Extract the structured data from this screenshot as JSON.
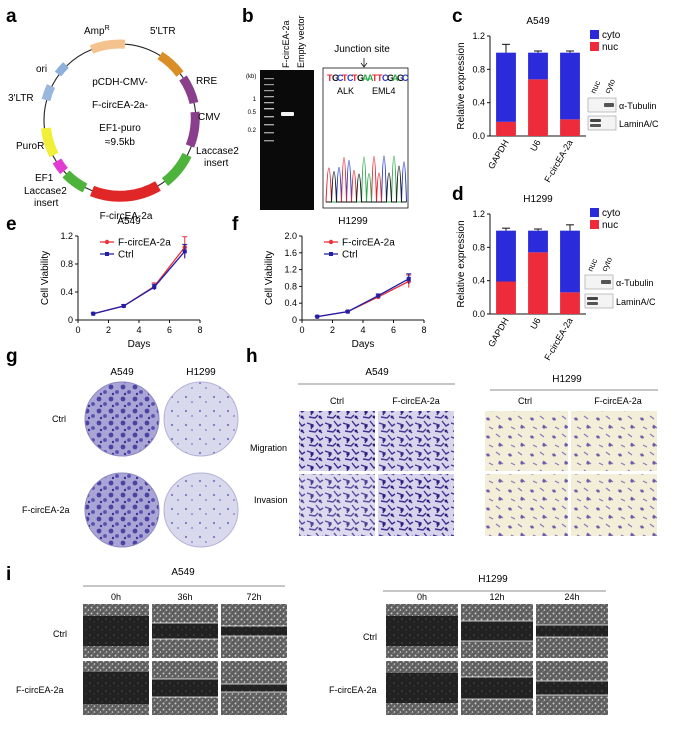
{
  "panels": {
    "a": {
      "letter": "a",
      "labels": {
        "amp": "Amp",
        "amp_sup": "R",
        "ltr5": "5'LTR",
        "ori": "ori",
        "rre": "RRE",
        "ltr3": "3'LTR",
        "cmv": "CMV",
        "laccase2_top_1": "Laccase2",
        "laccase2_top_2": "insert",
        "puror": "PuroR",
        "ef1": "EF1",
        "laccase2_bot_1": "Laccase2",
        "laccase2_bot_2": "insert",
        "fcirc": "F-circEA-2a",
        "center_1": "pCDH-CMV-",
        "center_2": "F-circEA-2a-",
        "center_3": "EF1-puro",
        "center_4": "≈9.5kb"
      }
    },
    "b": {
      "letter": "b",
      "lane_1": "F-circEA-2a",
      "lane_2": "Empty vector",
      "unit": "(kb)",
      "ticks": [
        "1",
        "0.5",
        "0.2"
      ],
      "junction_title": "Junction site",
      "sequence": [
        "T",
        "G",
        "C",
        "T",
        "C",
        "T",
        "G",
        "A",
        "A",
        "T",
        "T",
        "C",
        "G",
        "A",
        "G",
        "C"
      ],
      "gene_left": "ALK",
      "gene_right": "EML4"
    },
    "c": {
      "letter": "c",
      "cell_line": "A549",
      "blot_lanes": [
        "nuc",
        "cyto"
      ],
      "blot_labels": [
        "α-Tubulin",
        "LaminA/C"
      ]
    },
    "d": {
      "letter": "d",
      "cell_line": "H1299",
      "blot_lanes": [
        "nuc",
        "cyto"
      ],
      "blot_labels": [
        "α-Tubulin",
        "LaminA/C"
      ]
    },
    "e": {
      "letter": "e",
      "cell_line": "A549"
    },
    "f": {
      "letter": "f",
      "cell_line": "H1299"
    },
    "g": {
      "letter": "g",
      "cols": [
        "A549",
        "H1299"
      ],
      "rows": [
        "Ctrl",
        "F-circEA-2a"
      ]
    },
    "h": {
      "letter": "h",
      "groups": [
        "A549",
        "H1299"
      ],
      "cols": [
        "Ctrl",
        "F-circEA-2a"
      ],
      "rows": [
        "Migration",
        "Invasion"
      ]
    },
    "i": {
      "letter": "i",
      "groups": [
        "A549",
        "H1299"
      ],
      "times_a549": [
        "0h",
        "36h",
        "72h"
      ],
      "times_h1299": [
        "0h",
        "12h",
        "24h"
      ],
      "rows": [
        "Ctrl",
        "F-circEA-2a"
      ]
    }
  },
  "colors": {
    "cyto": "#2b2bdc",
    "nuc": "#ee2b3b",
    "ctrl_line": "#1f1fa8",
    "fcirc_line": "#e8323b"
  },
  "chart_data": [
    {
      "id": "c",
      "type": "bar",
      "stacked": true,
      "title": "A549",
      "ylabel": "Relative expression",
      "categories": [
        "GAPDH",
        "U6",
        "F-circEA-2a"
      ],
      "ylim": [
        0,
        1.2
      ],
      "yticks": [
        "0.0",
        "0.4",
        "0.8",
        "1.2"
      ],
      "series": [
        {
          "name": "nuc",
          "values": [
            0.17,
            0.68,
            0.2
          ]
        },
        {
          "name": "cyto",
          "values": [
            0.83,
            0.32,
            0.8
          ]
        }
      ],
      "errors": [
        0.1,
        0.02,
        0.02
      ],
      "legend": "top-right"
    },
    {
      "id": "d",
      "type": "bar",
      "stacked": true,
      "title": "H1299",
      "ylabel": "Relative expression",
      "categories": [
        "GAPDH",
        "U6",
        "F-circEA-2a"
      ],
      "ylim": [
        0,
        1.2
      ],
      "yticks": [
        "0.0",
        "0.4",
        "0.8",
        "1.2"
      ],
      "series": [
        {
          "name": "nuc",
          "values": [
            0.39,
            0.74,
            0.26
          ]
        },
        {
          "name": "cyto",
          "values": [
            0.61,
            0.26,
            0.74
          ]
        }
      ],
      "errors": [
        0.03,
        0.02,
        0.07
      ],
      "legend": "top-right"
    },
    {
      "id": "e",
      "type": "line",
      "title": "A549",
      "xlabel": "Days",
      "ylabel": "Cell Viability",
      "x": [
        1,
        3,
        5,
        7
      ],
      "xlim": [
        0,
        8
      ],
      "ylim": [
        0,
        1.2
      ],
      "xticks": [
        "0",
        "2",
        "4",
        "6",
        "8"
      ],
      "yticks": [
        "0",
        "0.4",
        "0.8",
        "1.2"
      ],
      "series": [
        {
          "name": "F-circEA-2a",
          "values": [
            0.09,
            0.2,
            0.48,
            1.04
          ],
          "errors": [
            0.01,
            0.02,
            0.05,
            0.15
          ]
        },
        {
          "name": "Ctrl",
          "values": [
            0.09,
            0.2,
            0.47,
            0.98
          ],
          "errors": [
            0.01,
            0.02,
            0.04,
            0.1
          ]
        }
      ],
      "legend": "top-left"
    },
    {
      "id": "f",
      "type": "line",
      "title": "H1299",
      "xlabel": "Days",
      "ylabel": "Cell Viability",
      "x": [
        1,
        3,
        5,
        7
      ],
      "xlim": [
        0,
        8
      ],
      "ylim": [
        0,
        2.0
      ],
      "xticks": [
        "0",
        "2",
        "4",
        "6",
        "8"
      ],
      "yticks": [
        "0",
        "0.4",
        "0.8",
        "1.2",
        "1.6",
        "2.0"
      ],
      "series": [
        {
          "name": "F-circEA-2a",
          "values": [
            0.08,
            0.2,
            0.55,
            0.92
          ],
          "errors": [
            0.01,
            0.02,
            0.04,
            0.15
          ]
        },
        {
          "name": "Ctrl",
          "values": [
            0.08,
            0.2,
            0.58,
            0.98
          ],
          "errors": [
            0.01,
            0.02,
            0.04,
            0.12
          ]
        }
      ],
      "legend": "top-left"
    }
  ]
}
